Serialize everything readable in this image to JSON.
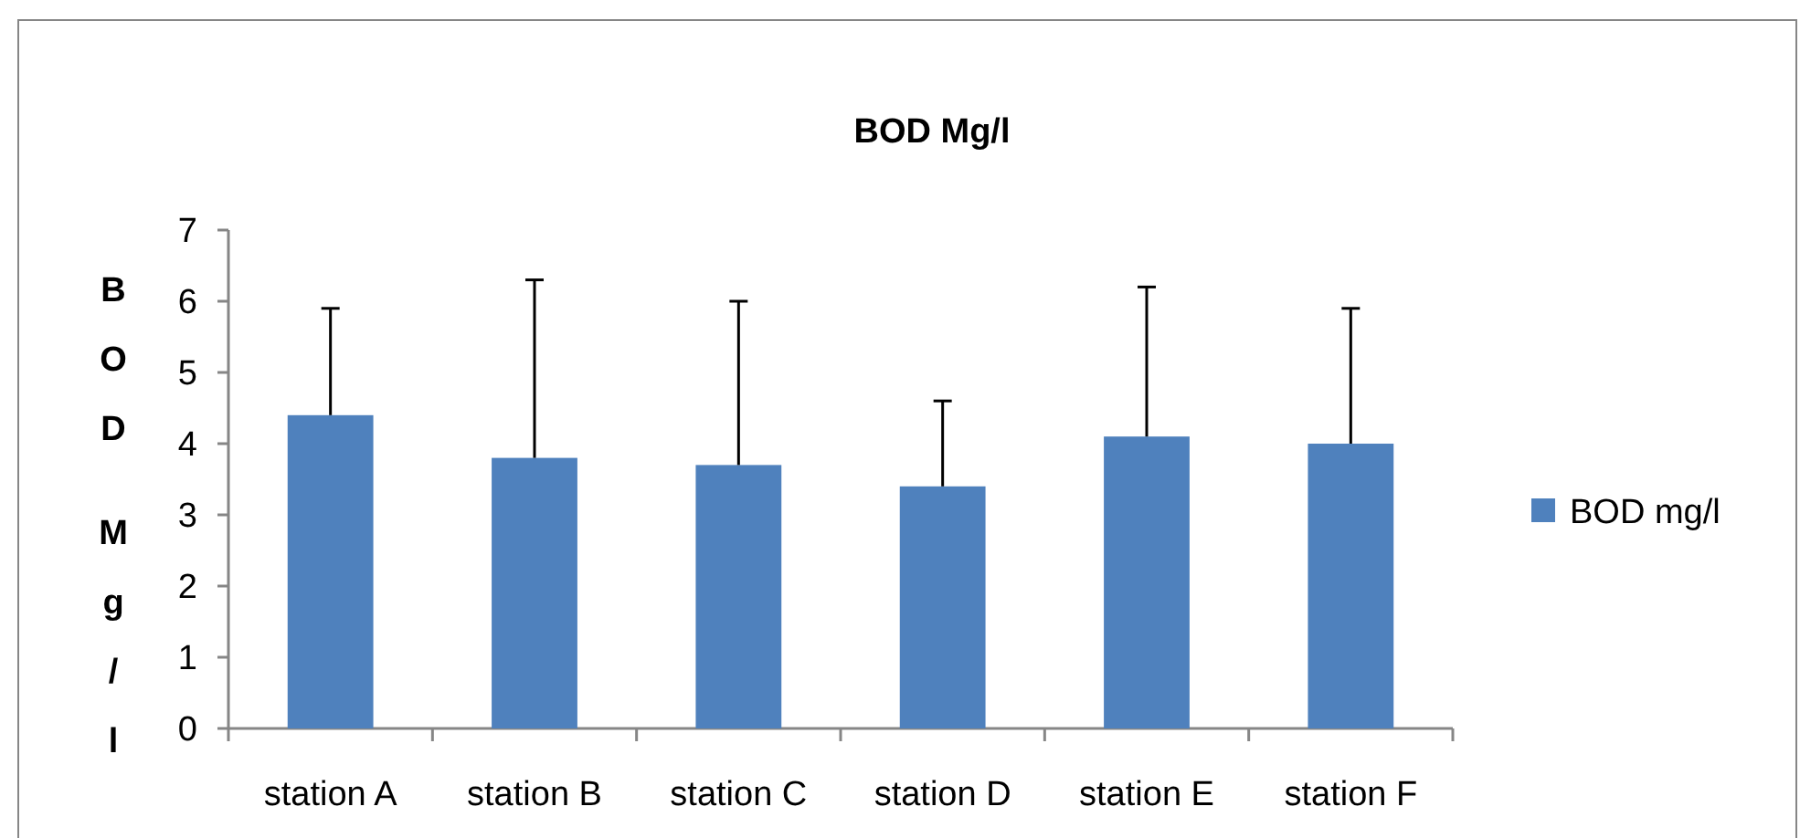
{
  "chart_data": {
    "type": "bar",
    "title": "BOD Mg/l",
    "ylabel": "BOD Mg/l",
    "categories": [
      "station A",
      "station B",
      "station C",
      "station D",
      "station E",
      "station F"
    ],
    "series": [
      {
        "name": "BOD mg/l",
        "color": "#4f81bd",
        "values": [
          4.4,
          3.8,
          3.7,
          3.4,
          4.1,
          4.0
        ],
        "errors": [
          [
            4.4,
            5.9
          ],
          [
            3.8,
            6.3
          ],
          [
            3.7,
            6.0
          ],
          [
            3.4,
            4.6
          ],
          [
            4.1,
            6.2
          ],
          [
            4.0,
            5.9
          ]
        ]
      }
    ],
    "ylim": [
      0,
      7
    ],
    "yticks": [
      0,
      1,
      2,
      3,
      4,
      5,
      6,
      7
    ],
    "grid": false,
    "legend": "right"
  }
}
